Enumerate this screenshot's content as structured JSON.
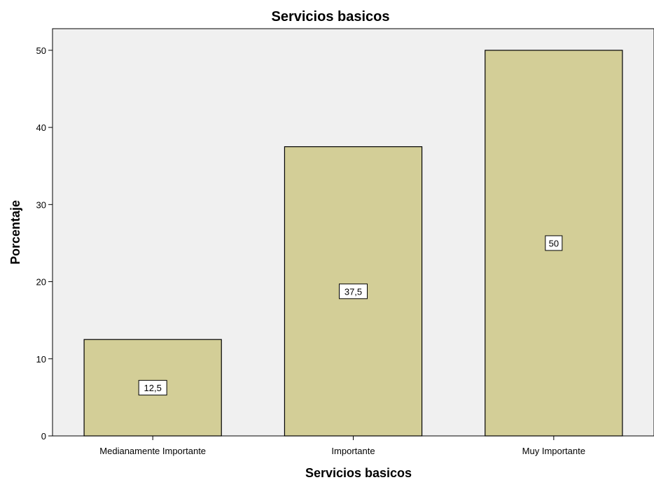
{
  "chart_data": {
    "type": "bar",
    "title": "Servicios basicos",
    "xlabel": "Servicios basicos",
    "ylabel": "Porcentaje",
    "categories": [
      "Medianamente Importante",
      "Importante",
      "Muy Importante"
    ],
    "values": [
      12.5,
      37.5,
      50
    ],
    "data_labels": [
      "12,5",
      "37,5",
      "50"
    ],
    "yticks": [
      0,
      10,
      20,
      30,
      40,
      50
    ],
    "ylim": [
      0,
      52.8
    ],
    "grid": false,
    "legend": "none",
    "colors": {
      "plot_background": "#f0f0f0",
      "bar_fill": "#d3ce97",
      "bar_stroke": "#000000",
      "label_box": "#ffffff"
    }
  }
}
